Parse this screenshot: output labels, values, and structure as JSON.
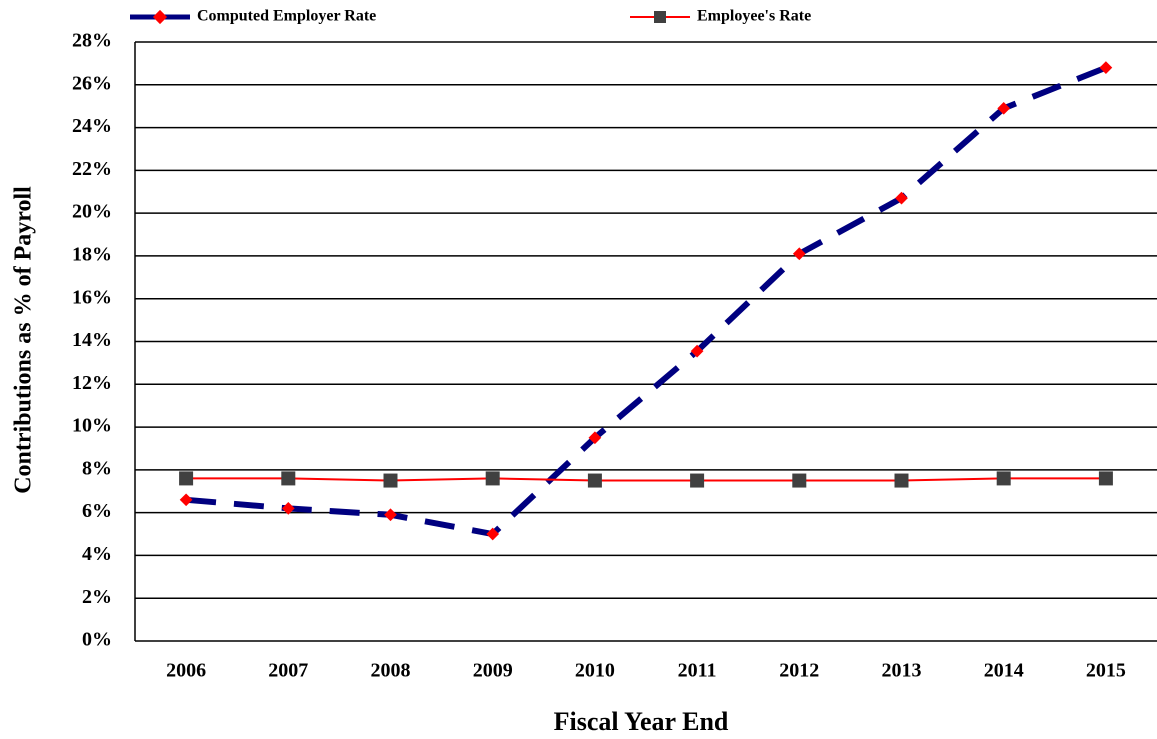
{
  "chart_data": {
    "type": "line",
    "xlabel": "Fiscal Year End",
    "ylabel": "Contributions as % of Payroll",
    "categories": [
      "2006",
      "2007",
      "2008",
      "2009",
      "2010",
      "2011",
      "2012",
      "2013",
      "2014",
      "2015"
    ],
    "series": [
      {
        "name": "Computed Employer Rate",
        "color": "#000080",
        "marker_color": "#ff0000",
        "values": [
          6.6,
          6.2,
          5.9,
          5.0,
          9.5,
          13.55,
          18.1,
          20.7,
          24.9,
          26.8
        ]
      },
      {
        "name": "Employee's Rate",
        "color": "#ff0000",
        "marker_color": "#404040",
        "values": [
          7.6,
          7.6,
          7.5,
          7.6,
          7.5,
          7.5,
          7.5,
          7.5,
          7.6,
          7.6
        ]
      }
    ],
    "ylim": [
      0,
      28
    ],
    "yticks": [
      {
        "value": 0,
        "label": "0%"
      },
      {
        "value": 2,
        "label": "2%"
      },
      {
        "value": 4,
        "label": "4%"
      },
      {
        "value": 6,
        "label": "6%"
      },
      {
        "value": 8,
        "label": "8%"
      },
      {
        "value": 10,
        "label": "10%"
      },
      {
        "value": 12,
        "label": "12%"
      },
      {
        "value": 14,
        "label": "14%"
      },
      {
        "value": 16,
        "label": "16%"
      },
      {
        "value": 18,
        "label": "18%"
      },
      {
        "value": 20,
        "label": "20%"
      },
      {
        "value": 22,
        "label": "22%"
      },
      {
        "value": 24,
        "label": "24%"
      },
      {
        "value": 26,
        "label": "26%"
      },
      {
        "value": 28,
        "label": "28%"
      }
    ],
    "grid": true
  }
}
